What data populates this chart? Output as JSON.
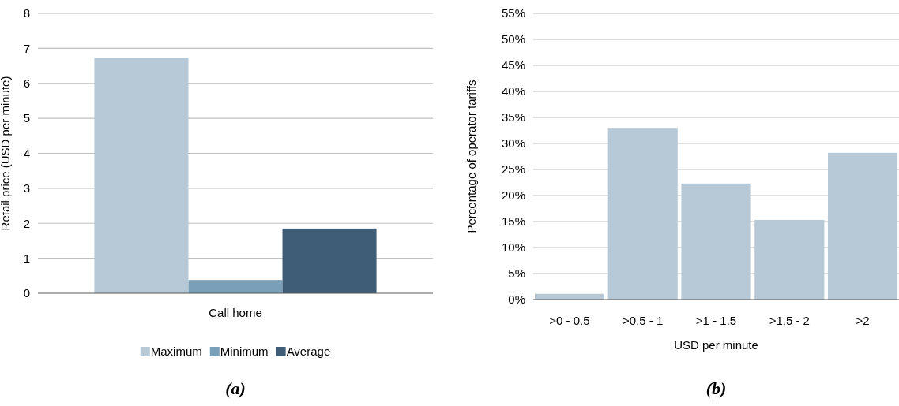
{
  "chart_data": [
    {
      "type": "bar",
      "title": "(a)",
      "ylabel": "Retail price (USD per minute)",
      "categories": [
        "Call home"
      ],
      "series": [
        {
          "name": "Maximum",
          "color": "#b7c9d6",
          "values": [
            6.73
          ]
        },
        {
          "name": "Minimum",
          "color": "#7a9fb9",
          "values": [
            0.38
          ]
        },
        {
          "name": "Average",
          "color": "#3f5d77",
          "values": [
            1.85
          ]
        }
      ],
      "ylim": [
        0,
        8
      ],
      "yticks": [
        0,
        1,
        2,
        3,
        4,
        5,
        6,
        7,
        8
      ],
      "grid": "y",
      "legend": "bottom"
    },
    {
      "type": "bar",
      "title": "(b)",
      "xlabel": "USD per minute",
      "ylabel": "Percentage of operator tariffs",
      "categories": [
        ">0 - 0.5",
        ">0.5 - 1",
        ">1 - 1.5",
        ">1.5 - 2",
        ">2"
      ],
      "series": [
        {
          "color": "#b7c9d6",
          "values": [
            1.1,
            33,
            22.3,
            15.3,
            28.2
          ]
        }
      ],
      "ylim": [
        0,
        55
      ],
      "yticks": [
        {
          "value": 0,
          "label": "0%"
        },
        {
          "value": 5,
          "label": "5%"
        },
        {
          "value": 10,
          "label": "10%"
        },
        {
          "value": 15,
          "label": "15%"
        },
        {
          "value": 20,
          "label": "20%"
        },
        {
          "value": 25,
          "label": "25%"
        },
        {
          "value": 30,
          "label": "30%"
        },
        {
          "value": 35,
          "label": "35%"
        },
        {
          "value": 40,
          "label": "40%"
        },
        {
          "value": 45,
          "label": "45%"
        },
        {
          "value": 50,
          "label": "50%"
        },
        {
          "value": 55,
          "label": "55%"
        }
      ],
      "grid": "y",
      "legend": false
    }
  ]
}
